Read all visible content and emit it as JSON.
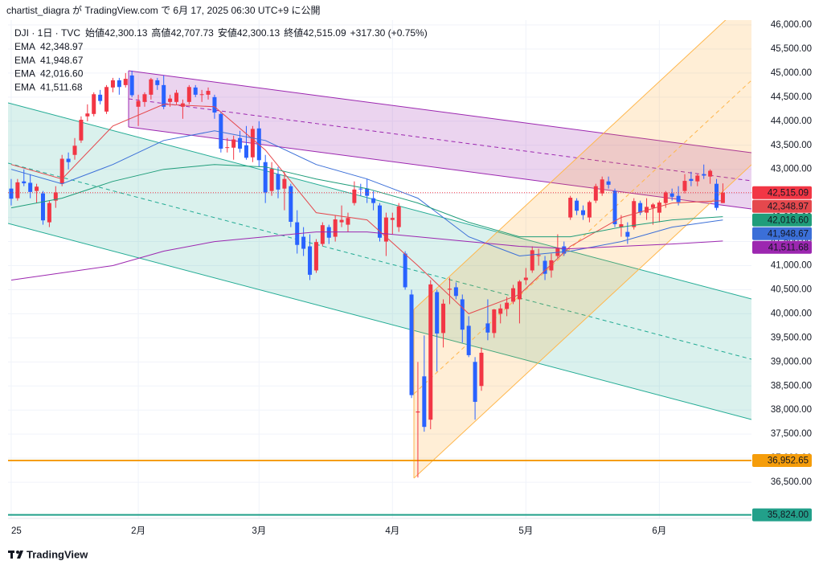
{
  "header": {
    "publisher": "chartist_diagra が TradingView.com で 6月 17, 2025 06:30 UTC+9 に公開"
  },
  "chart_data": {
    "type": "candlestick",
    "symbol": "DJI · 1日 · TVC",
    "ohlc_names": [
      "始値",
      "高値",
      "安値",
      "終値"
    ],
    "ohlc_value_labels": [
      "42,300.13",
      "42,707.73",
      "42,300.13",
      "42,515.09"
    ],
    "change": {
      "value": 317.3,
      "label": "+317.30 (+0.75%)"
    },
    "up_color": "#f23645",
    "down_color": "#2962ff",
    "xlim": [
      -0.5,
      116.5
    ],
    "xticks": [
      {
        "value": 0,
        "label": "25"
      },
      {
        "value": 20,
        "label": "2月"
      },
      {
        "value": 39,
        "label": "3月"
      },
      {
        "value": 60,
        "label": "4月"
      },
      {
        "value": 81,
        "label": "5月"
      },
      {
        "value": 102,
        "label": "6月"
      }
    ],
    "ylim": [
      35750,
      46100
    ],
    "yticks": [
      {
        "value": 46000,
        "label": "46,000.00"
      },
      {
        "value": 45500,
        "label": "45,500.00"
      },
      {
        "value": 45000,
        "label": "45,000.00"
      },
      {
        "value": 44500,
        "label": "44,500.00"
      },
      {
        "value": 44000,
        "label": "44,000.00"
      },
      {
        "value": 43500,
        "label": "43,500.00"
      },
      {
        "value": 43000,
        "label": "43,000.00"
      },
      {
        "value": 42500,
        "label": "42,500.00"
      },
      {
        "value": 42000,
        "label": "42,000.00"
      },
      {
        "value": 41500,
        "label": "41,500.00"
      },
      {
        "value": 41000,
        "label": "41,000.00"
      },
      {
        "value": 40500,
        "label": "40,500.00"
      },
      {
        "value": 40000,
        "label": "40,000.00"
      },
      {
        "value": 39500,
        "label": "39,500.00"
      },
      {
        "value": 39000,
        "label": "39,000.00"
      },
      {
        "value": 38500,
        "label": "38,500.00"
      },
      {
        "value": 38000,
        "label": "38,000.00"
      },
      {
        "value": 37500,
        "label": "37,500.00"
      },
      {
        "value": 37000,
        "label": "37,000.00"
      },
      {
        "value": 36500,
        "label": "36,500.00"
      }
    ],
    "grid": true,
    "candles": [
      [
        42600,
        42800,
        42250,
        42390
      ],
      [
        42400,
        42800,
        42350,
        42730
      ],
      [
        42750,
        43000,
        42650,
        42710
      ],
      [
        42720,
        42900,
        42400,
        42530
      ],
      [
        42550,
        42700,
        42300,
        42640
      ],
      [
        42500,
        42550,
        41850,
        41940
      ],
      [
        41900,
        42350,
        41800,
        42300
      ],
      [
        42350,
        42650,
        42200,
        42520
      ],
      [
        42700,
        43300,
        42650,
        43220
      ],
      [
        43220,
        43350,
        43000,
        43150
      ],
      [
        43300,
        43650,
        43200,
        43490
      ],
      [
        43600,
        44100,
        43550,
        44030
      ],
      [
        44100,
        44350,
        44000,
        44160
      ],
      [
        44150,
        44600,
        44100,
        44560
      ],
      [
        44550,
        44650,
        44350,
        44420
      ],
      [
        44200,
        44750,
        44150,
        44710
      ],
      [
        44700,
        44900,
        44600,
        44850
      ],
      [
        44850,
        44900,
        44550,
        44710
      ],
      [
        44750,
        45000,
        44700,
        44880
      ],
      [
        44950,
        45050,
        44500,
        44540
      ],
      [
        44300,
        44550,
        43900,
        44420
      ],
      [
        44400,
        44600,
        44300,
        44560
      ],
      [
        44550,
        44900,
        44450,
        44870
      ],
      [
        44850,
        44900,
        44650,
        44750
      ],
      [
        44750,
        44950,
        44250,
        44300
      ],
      [
        44400,
        44550,
        44300,
        44470
      ],
      [
        44400,
        44650,
        44350,
        44590
      ],
      [
        44300,
        44450,
        44050,
        44370
      ],
      [
        44400,
        44750,
        44350,
        44710
      ],
      [
        44700,
        44750,
        44500,
        44550
      ],
      [
        44550,
        44650,
        44400,
        44560
      ],
      [
        44550,
        44700,
        44450,
        44630
      ],
      [
        44500,
        44550,
        44050,
        44180
      ],
      [
        44150,
        44200,
        43350,
        43430
      ],
      [
        43450,
        43650,
        43350,
        43460
      ],
      [
        43450,
        43700,
        43200,
        43620
      ],
      [
        43650,
        43800,
        43350,
        43430
      ],
      [
        43500,
        43900,
        43200,
        43240
      ],
      [
        43250,
        43900,
        43150,
        43840
      ],
      [
        43850,
        44000,
        43050,
        43190
      ],
      [
        43150,
        43300,
        42300,
        42520
      ],
      [
        42550,
        43150,
        42450,
        43010
      ],
      [
        42900,
        43050,
        42400,
        42580
      ],
      [
        42600,
        42950,
        42150,
        42800
      ],
      [
        42650,
        42700,
        41800,
        41910
      ],
      [
        41900,
        42150,
        41250,
        41430
      ],
      [
        41600,
        41800,
        41200,
        41350
      ],
      [
        41400,
        41650,
        40700,
        40810
      ],
      [
        40900,
        41550,
        40850,
        41490
      ],
      [
        41450,
        41900,
        41400,
        41840
      ],
      [
        41800,
        41850,
        41450,
        41580
      ],
      [
        41600,
        42050,
        41500,
        41960
      ],
      [
        41900,
        42250,
        41800,
        41950
      ],
      [
        41850,
        42100,
        41700,
        41990
      ],
      [
        42300,
        42750,
        42250,
        42580
      ],
      [
        42600,
        42700,
        42450,
        42590
      ],
      [
        42600,
        42800,
        42300,
        42450
      ],
      [
        42400,
        42550,
        42150,
        42300
      ],
      [
        42250,
        42300,
        41500,
        41580
      ],
      [
        41500,
        42100,
        41200,
        42000
      ],
      [
        41950,
        42100,
        41650,
        41990
      ],
      [
        41800,
        42300,
        41700,
        42230
      ],
      [
        41250,
        41300,
        40500,
        40550
      ],
      [
        40400,
        40500,
        38250,
        38310
      ],
      [
        37950,
        39000,
        36600,
        37970
      ],
      [
        38700,
        39550,
        37550,
        37650
      ],
      [
        37800,
        40700,
        37600,
        40610
      ],
      [
        40450,
        40500,
        38800,
        39590
      ],
      [
        39600,
        40300,
        39300,
        40210
      ],
      [
        40500,
        40750,
        40200,
        40520
      ],
      [
        40550,
        40650,
        40300,
        40370
      ],
      [
        40300,
        40400,
        39400,
        39670
      ],
      [
        39750,
        39950,
        39100,
        39140
      ],
      [
        39000,
        39100,
        37800,
        38170
      ],
      [
        38500,
        39300,
        38400,
        39190
      ],
      [
        39800,
        40300,
        39450,
        39610
      ],
      [
        39600,
        40100,
        39500,
        40090
      ],
      [
        40000,
        40200,
        39800,
        40110
      ],
      [
        40100,
        40350,
        39950,
        40230
      ],
      [
        40250,
        40600,
        40200,
        40530
      ],
      [
        40300,
        40700,
        39800,
        40670
      ],
      [
        40700,
        40950,
        40600,
        40750
      ],
      [
        40900,
        41400,
        40850,
        41320
      ],
      [
        41200,
        41350,
        41000,
        41220
      ],
      [
        41100,
        41200,
        40700,
        40830
      ],
      [
        40900,
        41250,
        40750,
        41110
      ],
      [
        41200,
        41650,
        41150,
        41370
      ],
      [
        41400,
        41500,
        41200,
        41250
      ],
      [
        42000,
        42450,
        41950,
        42410
      ],
      [
        42350,
        42400,
        42050,
        42140
      ],
      [
        42150,
        42250,
        41950,
        42050
      ],
      [
        42000,
        42350,
        41900,
        42320
      ],
      [
        42350,
        42700,
        42300,
        42650
      ],
      [
        42500,
        42850,
        42450,
        42790
      ],
      [
        42750,
        42850,
        42600,
        42680
      ],
      [
        42550,
        42600,
        41800,
        41860
      ],
      [
        41800,
        42050,
        41600,
        41860
      ],
      [
        41700,
        41900,
        41450,
        41600
      ],
      [
        41800,
        42400,
        41750,
        42340
      ],
      [
        42300,
        42350,
        42050,
        42100
      ],
      [
        42100,
        42400,
        41950,
        42220
      ],
      [
        42200,
        42300,
        41850,
        42270
      ],
      [
        42100,
        42350,
        41900,
        42310
      ],
      [
        42300,
        42550,
        42200,
        42520
      ],
      [
        42500,
        42600,
        42350,
        42430
      ],
      [
        42450,
        42650,
        42250,
        42320
      ],
      [
        42550,
        42900,
        42500,
        42760
      ],
      [
        42800,
        42950,
        42650,
        42760
      ],
      [
        42750,
        42900,
        42650,
        42870
      ],
      [
        42900,
        43100,
        42800,
        42870
      ],
      [
        42850,
        43000,
        42700,
        42970
      ],
      [
        42700,
        42800,
        42150,
        42200
      ],
      [
        42300.13,
        42707.73,
        42300.13,
        42515.09
      ]
    ],
    "series": [
      {
        "name": "EMA",
        "color": "#e5484d",
        "value_label": "42,348.97",
        "x": [
          0,
          8,
          16,
          24,
          32,
          40,
          48,
          56,
          64,
          72,
          80,
          88,
          96,
          104,
          112
        ],
        "values": [
          43100,
          42800,
          43900,
          44350,
          44300,
          43400,
          42100,
          41950,
          41000,
          40000,
          40400,
          41400,
          42000,
          42300,
          42348.97
        ]
      },
      {
        "name": "EMA",
        "color": "#3b6fd8",
        "value_label": "41,948.67",
        "x": [
          0,
          8,
          16,
          24,
          32,
          40,
          48,
          56,
          64,
          72,
          80,
          88,
          96,
          104,
          112
        ],
        "values": [
          43000,
          42700,
          43100,
          43600,
          43800,
          43600,
          43100,
          42800,
          42400,
          41600,
          41200,
          41300,
          41500,
          41800,
          41948.67
        ]
      },
      {
        "name": "EMA",
        "color": "#1f9d7a",
        "value_label": "42,016.60",
        "x": [
          0,
          8,
          16,
          24,
          32,
          40,
          48,
          56,
          64,
          72,
          80,
          88,
          96,
          104,
          112
        ],
        "values": [
          42200,
          42400,
          42750,
          43000,
          43100,
          43050,
          42800,
          42600,
          42300,
          41900,
          41600,
          41600,
          41800,
          41950,
          42016.6
        ]
      },
      {
        "name": "EMA",
        "color": "#9c27b0",
        "value_label": "41,511.68",
        "x": [
          0,
          8,
          16,
          24,
          32,
          40,
          48,
          56,
          64,
          72,
          80,
          88,
          96,
          104,
          112
        ],
        "values": [
          40700,
          40850,
          41000,
          41300,
          41500,
          41600,
          41700,
          41700,
          41600,
          41500,
          41400,
          41350,
          41400,
          41450,
          41511.68
        ]
      }
    ],
    "horizontal_lines": [
      {
        "value": 36952.65,
        "label": "36,952.65",
        "color": "#f59d0b"
      },
      {
        "value": 35824,
        "label": "35,824.00",
        "color": "#22a08a"
      }
    ]
  },
  "footer": {
    "brand": "TradingView"
  }
}
